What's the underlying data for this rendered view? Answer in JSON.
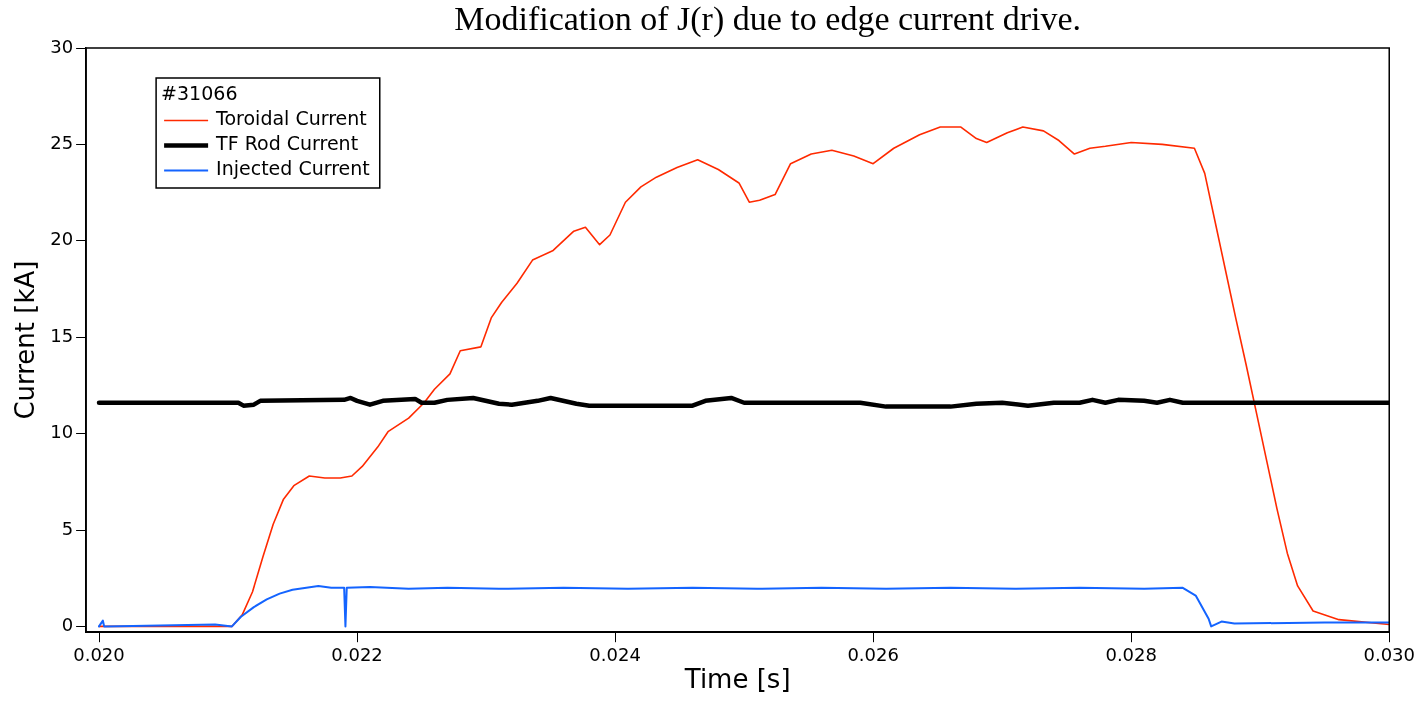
{
  "chart_data": {
    "type": "line",
    "title": "Modification of J(r) due to edge current drive.",
    "xlabel": "Time [s]",
    "ylabel": "Current [kA]",
    "legend_title": "#31066",
    "legend": "top left",
    "grid": false,
    "marker": "none",
    "line_style": "solid",
    "xlim": [
      0.0199,
      0.03
    ],
    "ylim": [
      -0.3,
      30
    ],
    "xticks": [
      {
        "value": 0.02,
        "label": "0.020"
      },
      {
        "value": 0.022,
        "label": "0.022"
      },
      {
        "value": 0.024,
        "label": "0.024"
      },
      {
        "value": 0.026,
        "label": "0.026"
      },
      {
        "value": 0.028,
        "label": "0.028"
      },
      {
        "value": 0.03,
        "label": "0.030"
      }
    ],
    "yticks": [
      0,
      5,
      10,
      15,
      20,
      25,
      30
    ],
    "series": [
      {
        "name": "Toroidal Current",
        "color": "#ff2a00",
        "x": [
          0.02,
          0.02103,
          0.02111,
          0.02119,
          0.02127,
          0.02135,
          0.02143,
          0.02151,
          0.02163,
          0.02175,
          0.02187,
          0.02196,
          0.02204,
          0.02216,
          0.02224,
          0.0224,
          0.02252,
          0.0226,
          0.02272,
          0.0228,
          0.02296,
          0.02304,
          0.02312,
          0.02324,
          0.02336,
          0.02352,
          0.02368,
          0.02377,
          0.02388,
          0.02396,
          0.02408,
          0.0242,
          0.02432,
          0.02448,
          0.02464,
          0.0248,
          0.02496,
          0.02504,
          0.02512,
          0.02524,
          0.02536,
          0.02552,
          0.02568,
          0.02585,
          0.026,
          0.02616,
          0.02636,
          0.02652,
          0.02668,
          0.0268,
          0.02688,
          0.02704,
          0.02716,
          0.02732,
          0.02744,
          0.02756,
          0.02768,
          0.0278,
          0.028,
          0.02824,
          0.02849,
          0.02857,
          0.02865,
          0.02873,
          0.02881,
          0.02889,
          0.02897,
          0.02905,
          0.02913,
          0.02921,
          0.02929,
          0.02941,
          0.02961,
          0.03
        ],
        "values": [
          0,
          0,
          0.6,
          1.8,
          3.6,
          5.3,
          6.6,
          7.3,
          7.8,
          7.7,
          7.7,
          7.8,
          8.3,
          9.3,
          10.1,
          10.8,
          11.6,
          12.3,
          13.1,
          14.3,
          14.5,
          16.0,
          16.8,
          17.8,
          19.0,
          19.5,
          20.5,
          20.7,
          19.8,
          20.3,
          22.0,
          22.8,
          23.3,
          23.8,
          24.2,
          23.7,
          23.0,
          22.0,
          22.1,
          22.4,
          24.0,
          24.5,
          24.7,
          24.4,
          24.0,
          24.8,
          25.5,
          25.9,
          25.9,
          25.3,
          25.1,
          25.6,
          25.9,
          25.7,
          25.2,
          24.5,
          24.8,
          24.9,
          25.1,
          25.0,
          24.8,
          23.5,
          21.0,
          18.5,
          16.0,
          13.6,
          11.1,
          8.6,
          6.1,
          3.8,
          2.1,
          0.8,
          0.35,
          0.1
        ]
      },
      {
        "name": "TF Rod Current",
        "color": "#000000",
        "x": [
          0.02,
          0.02108,
          0.02112,
          0.0212,
          0.02125,
          0.0219,
          0.02195,
          0.022,
          0.0221,
          0.0222,
          0.02245,
          0.0225,
          0.0226,
          0.0227,
          0.0229,
          0.0231,
          0.0232,
          0.0234,
          0.0235,
          0.0237,
          0.0238,
          0.0246,
          0.0247,
          0.0249,
          0.025,
          0.0259,
          0.0261,
          0.0266,
          0.0268,
          0.027,
          0.0272,
          0.0274,
          0.0276,
          0.0277,
          0.0278,
          0.0279,
          0.0281,
          0.0282,
          0.0283,
          0.0284,
          0.03
        ],
        "values": [
          11.6,
          11.6,
          11.45,
          11.5,
          11.7,
          11.75,
          11.85,
          11.7,
          11.5,
          11.7,
          11.8,
          11.6,
          11.6,
          11.75,
          11.85,
          11.55,
          11.5,
          11.7,
          11.85,
          11.55,
          11.45,
          11.45,
          11.7,
          11.85,
          11.6,
          11.6,
          11.4,
          11.4,
          11.55,
          11.6,
          11.45,
          11.6,
          11.6,
          11.75,
          11.6,
          11.75,
          11.7,
          11.6,
          11.75,
          11.6,
          11.6
        ]
      },
      {
        "name": "Injected Current",
        "color": "#1464ff",
        "x": [
          0.02,
          0.02003,
          0.02004,
          0.02005,
          0.0209,
          0.02103,
          0.0211,
          0.0212,
          0.0213,
          0.0214,
          0.0215,
          0.0217,
          0.0218,
          0.0219,
          0.02191,
          0.02192,
          0.0221,
          0.0224,
          0.0227,
          0.0231,
          0.0236,
          0.0241,
          0.0246,
          0.0251,
          0.0256,
          0.0261,
          0.0266,
          0.0271,
          0.0276,
          0.0281,
          0.0284,
          0.0285,
          0.0286,
          0.02862,
          0.0287,
          0.0288,
          0.0295,
          0.03
        ],
        "values": [
          0,
          0.3,
          0,
          0,
          0.1,
          0,
          0.5,
          1.0,
          1.4,
          1.7,
          1.9,
          2.1,
          2.0,
          2.0,
          0,
          2.0,
          2.05,
          1.95,
          2.0,
          1.95,
          2.0,
          1.95,
          2.0,
          1.95,
          2.0,
          1.95,
          2.0,
          1.95,
          2.0,
          1.95,
          2.0,
          1.6,
          0.4,
          0.0,
          0.25,
          0.15,
          0.2,
          0.2
        ]
      }
    ]
  }
}
